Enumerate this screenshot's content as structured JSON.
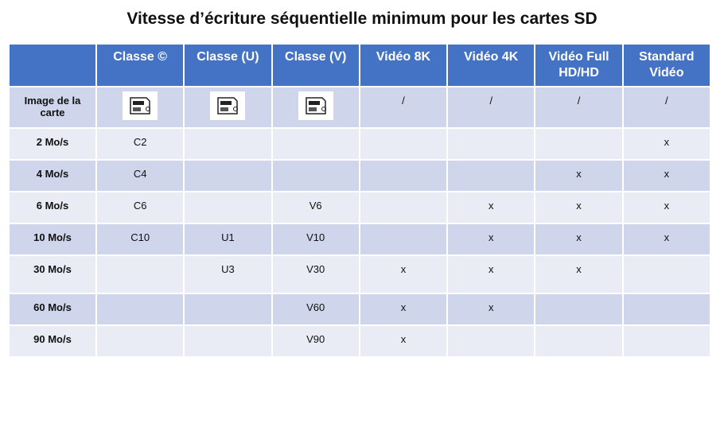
{
  "title": "Vitesse d’écriture séquentielle minimum pour les cartes SD",
  "table": {
    "header": [
      "Classe ©",
      "Classe (U)",
      "Classe (V)",
      "Vidéo 8K",
      "Vidéo 4K",
      "Vidéo Full HD/HD",
      "Standard Vidéo"
    ],
    "rows": [
      {
        "label": "Image de la carte",
        "cells": [
          null,
          null,
          null,
          "/",
          "/",
          "/",
          "/"
        ]
      },
      {
        "label": "2 Mo/s",
        "cells": [
          "C2",
          null,
          null,
          null,
          null,
          null,
          "x"
        ]
      },
      {
        "label": "4 Mo/s",
        "cells": [
          "C4",
          null,
          null,
          null,
          null,
          "x",
          "x"
        ]
      },
      {
        "label": "6 Mo/s",
        "cells": [
          "C6",
          null,
          "V6",
          null,
          "x",
          "x",
          "x"
        ]
      },
      {
        "label": "10 Mo/s",
        "cells": [
          "C10",
          "U1",
          "V10",
          null,
          "x",
          "x",
          "x"
        ]
      },
      {
        "label": "30 Mo/s",
        "cells": [
          null,
          "U3",
          "V30",
          "x",
          "x",
          "x",
          null
        ]
      },
      {
        "label": "60 Mo/s",
        "cells": [
          null,
          null,
          "V60",
          "x",
          "x",
          null,
          null
        ]
      },
      {
        "label": "90 Mo/s",
        "cells": [
          null,
          null,
          "V90",
          "x",
          null,
          null,
          null
        ]
      }
    ]
  }
}
